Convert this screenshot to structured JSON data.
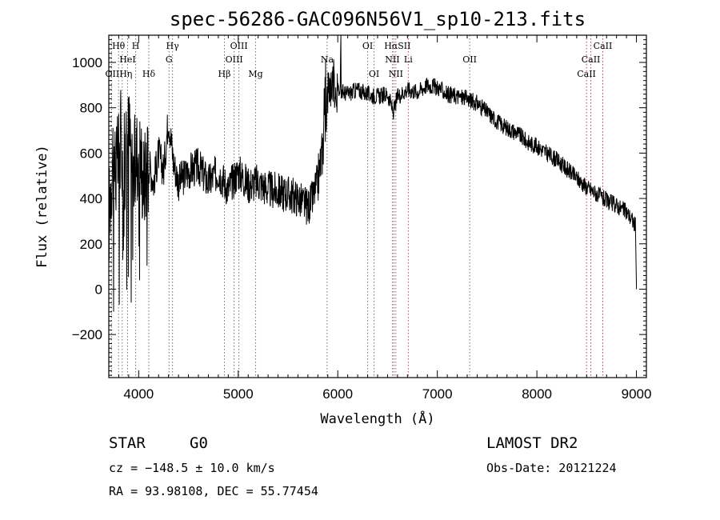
{
  "chart_data": {
    "type": "line",
    "title": "spec-56286-GAC096N56V1_sp10-213.fits",
    "xlabel": "Wavelength (Å)",
    "ylabel": "Flux (relative)",
    "xlim": [
      3700,
      9100
    ],
    "ylim": [
      -390,
      1120
    ],
    "xticks": [
      4000,
      5000,
      6000,
      7000,
      8000,
      9000
    ],
    "yticks": [
      -200,
      0,
      200,
      400,
      600,
      800,
      1000
    ],
    "grid": false,
    "series": [
      {
        "color": "#000000",
        "x": [
          3700,
          3740,
          3780,
          3820,
          3860,
          3900,
          3950,
          4000,
          4050,
          4100,
          4150,
          4200,
          4250,
          4300,
          4350,
          4400,
          4500,
          4600,
          4700,
          4800,
          4900,
          5000,
          5100,
          5200,
          5300,
          5400,
          5500,
          5600,
          5700,
          5750,
          5800,
          5850,
          5880,
          5900,
          5950,
          6000,
          6100,
          6200,
          6300,
          6400,
          6500,
          6560,
          6600,
          6700,
          6800,
          6900,
          7000,
          7100,
          7200,
          7300,
          7400,
          7500,
          7600,
          7700,
          7800,
          7900,
          8000,
          8100,
          8200,
          8300,
          8400,
          8500,
          8600,
          8700,
          8800,
          8900,
          8950,
          8990,
          9000
        ],
        "y": [
          300,
          620,
          520,
          660,
          560,
          700,
          520,
          640,
          480,
          560,
          470,
          600,
          520,
          760,
          560,
          470,
          520,
          540,
          470,
          520,
          440,
          520,
          460,
          470,
          440,
          430,
          420,
          400,
          360,
          400,
          480,
          620,
          760,
          880,
          920,
          880,
          860,
          880,
          860,
          850,
          860,
          780,
          850,
          880,
          870,
          900,
          890,
          860,
          850,
          840,
          820,
          780,
          740,
          710,
          690,
          650,
          630,
          600,
          570,
          530,
          490,
          450,
          420,
          390,
          370,
          340,
          310,
          280,
          0
        ]
      }
    ],
    "annotations": {
      "line_labels": [
        {
          "label": "Hθ",
          "wavelength": 3798,
          "row": 0
        },
        {
          "label": "H",
          "wavelength": 3970,
          "row": 0
        },
        {
          "label": "Hγ",
          "wavelength": 4340,
          "row": 0
        },
        {
          "label": "OIII",
          "wavelength": 5007,
          "row": 0
        },
        {
          "label": "OI",
          "wavelength": 6300,
          "row": 0
        },
        {
          "label": "HαSII",
          "wavelength": 6600,
          "row": 0
        },
        {
          "label": "CaII",
          "wavelength": 8662,
          "row": 0
        },
        {
          "label": "HeI",
          "wavelength": 3889,
          "row": 1
        },
        {
          "label": "G",
          "wavelength": 4305,
          "row": 1
        },
        {
          "label": "OIII",
          "wavelength": 4959,
          "row": 1
        },
        {
          "label": "Na",
          "wavelength": 5893,
          "row": 1
        },
        {
          "label": "NII",
          "wavelength": 6548,
          "row": 1
        },
        {
          "label": "Li",
          "wavelength": 6708,
          "row": 1
        },
        {
          "label": "OII",
          "wavelength": 7325,
          "row": 1
        },
        {
          "label": "CaII",
          "wavelength": 8542,
          "row": 1
        },
        {
          "label": "OIIHη",
          "wavelength": 3800,
          "row": 2
        },
        {
          "label": "Hδ",
          "wavelength": 4102,
          "row": 2
        },
        {
          "label": "Hβ",
          "wavelength": 4861,
          "row": 2
        },
        {
          "label": "Mg",
          "wavelength": 5175,
          "row": 2
        },
        {
          "label": "OI",
          "wavelength": 6364,
          "row": 2
        },
        {
          "label": "NII",
          "wavelength": 6583,
          "row": 2
        },
        {
          "label": "CaII",
          "wavelength": 8498,
          "row": 2
        }
      ],
      "marker_lines": [
        {
          "wavelength": 3727,
          "color": "#707070"
        },
        {
          "wavelength": 3798,
          "color": "#707070"
        },
        {
          "wavelength": 3835,
          "color": "#707070"
        },
        {
          "wavelength": 3889,
          "color": "#707070"
        },
        {
          "wavelength": 3970,
          "color": "#707070"
        },
        {
          "wavelength": 4102,
          "color": "#707070"
        },
        {
          "wavelength": 4305,
          "color": "#707070"
        },
        {
          "wavelength": 4340,
          "color": "#707070"
        },
        {
          "wavelength": 4861,
          "color": "#707070"
        },
        {
          "wavelength": 4959,
          "color": "#707070"
        },
        {
          "wavelength": 5007,
          "color": "#707070"
        },
        {
          "wavelength": 5175,
          "color": "#707070"
        },
        {
          "wavelength": 5893,
          "color": "#707070"
        },
        {
          "wavelength": 6300,
          "color": "#707070"
        },
        {
          "wavelength": 6364,
          "color": "#707070"
        },
        {
          "wavelength": 6548,
          "color": "#707070"
        },
        {
          "wavelength": 6563,
          "color": "#cc3333"
        },
        {
          "wavelength": 6583,
          "color": "#707070"
        },
        {
          "wavelength": 6708,
          "color": "#cc3333"
        },
        {
          "wavelength": 7325,
          "color": "#707070"
        },
        {
          "wavelength": 8498,
          "color": "#cc3333"
        },
        {
          "wavelength": 8542,
          "color": "#cc3333"
        },
        {
          "wavelength": 8662,
          "color": "#cc3333"
        }
      ]
    }
  },
  "info": {
    "object_class": "STAR",
    "subclass": "G0",
    "survey": "LAMOST DR2",
    "redshift": "cz = −148.5 ± 10.0 km/s",
    "obs_date": "Obs-Date: 20121224",
    "coords": "RA =  93.98108, DEC =  55.77454"
  }
}
